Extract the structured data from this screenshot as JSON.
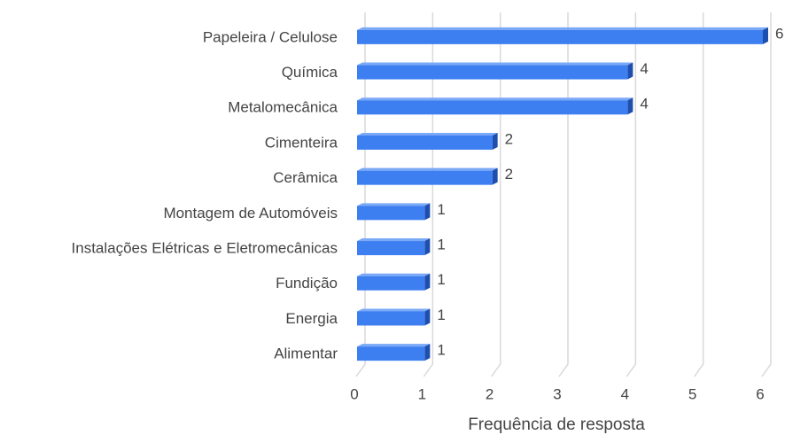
{
  "chart_data": {
    "type": "bar",
    "orientation": "horizontal",
    "x_label": "Frequência de resposta",
    "categories": [
      "Papeleira / Celulose",
      "Química",
      "Metalomecânica",
      "Cimenteira",
      "Cerâmica",
      "Montagem de Automóveis",
      "Instalações Elétricas e Eletromecânicas",
      "Fundição",
      "Energia",
      "Alimentar"
    ],
    "values": [
      6,
      4,
      4,
      2,
      2,
      1,
      1,
      1,
      1,
      1
    ],
    "color": "#3d7ef0",
    "xlim": [
      0,
      6
    ],
    "xticks": [
      0,
      1,
      2,
      3,
      4,
      5,
      6
    ],
    "grid": true
  }
}
